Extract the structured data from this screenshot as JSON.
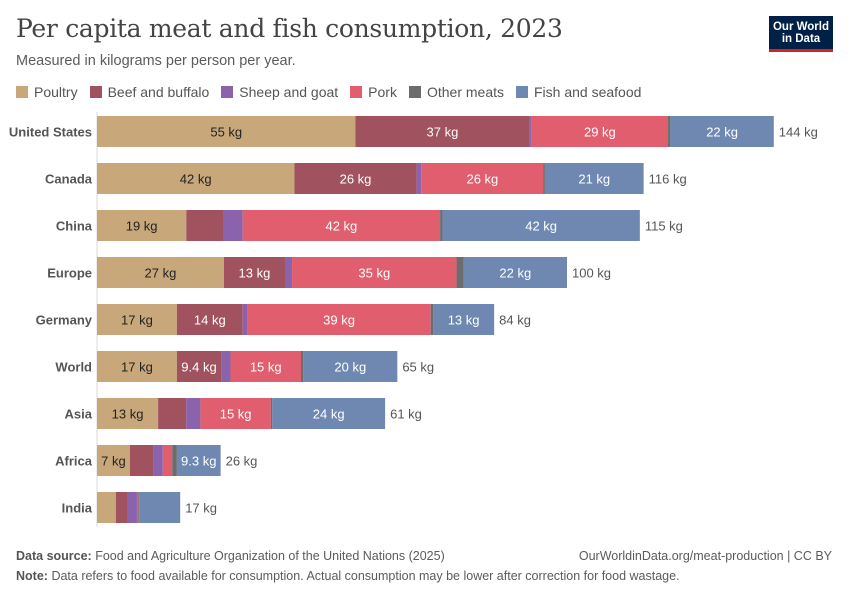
{
  "header": {
    "title": "Per capita meat and fish consumption, 2023",
    "subtitle": "Measured in kilograms per person per year.",
    "logo_line1": "Our World",
    "logo_line2": "in Data"
  },
  "footer": {
    "source_label": "Data source:",
    "source_text": "Food and Agriculture Organization of the United Nations (2025)",
    "url": "OurWorldinData.org/meat-production | CC BY",
    "note_label": "Note:",
    "note_text": "Data refers to food available for consumption. Actual consumption may be lower after correction for food wastage."
  },
  "colors": {
    "Poultry": "#c8a77a",
    "Beef and buffalo": "#a1525f",
    "Sheep and goat": "#8b62ac",
    "Pork": "#e05e6e",
    "Other meats": "#6c6c6c",
    "Fish and seafood": "#6f88b2"
  },
  "chart_data": {
    "type": "bar",
    "orientation": "horizontal",
    "stacked": true,
    "unit": "kg",
    "legend_position": "top",
    "categories": [
      "United States",
      "Canada",
      "China",
      "Europe",
      "Germany",
      "World",
      "Asia",
      "Africa",
      "India"
    ],
    "series": [
      {
        "name": "Poultry",
        "values": [
          55,
          42,
          19,
          27,
          17,
          17,
          13,
          7,
          4
        ],
        "labels": [
          "55 kg",
          "42 kg",
          "19 kg",
          "27 kg",
          "17 kg",
          "17 kg",
          "13 kg",
          "7 kg",
          ""
        ]
      },
      {
        "name": "Beef and buffalo",
        "values": [
          37,
          26,
          8,
          13,
          14,
          9.4,
          6,
          5,
          2.5
        ],
        "labels": [
          "37 kg",
          "26 kg",
          "",
          "13 kg",
          "14 kg",
          "9.4 kg",
          "",
          "",
          ""
        ]
      },
      {
        "name": "Sheep and goat",
        "values": [
          0.5,
          1,
          4,
          1.5,
          1,
          2,
          3,
          2,
          2
        ],
        "labels": [
          "",
          "",
          "",
          "",
          "",
          "",
          "",
          "",
          ""
        ]
      },
      {
        "name": "Pork",
        "values": [
          29,
          26,
          42,
          35,
          39,
          15,
          15,
          2,
          0.3
        ],
        "labels": [
          "29 kg",
          "26 kg",
          "42 kg",
          "35 kg",
          "39 kg",
          "15 kg",
          "15 kg",
          "",
          ""
        ]
      },
      {
        "name": "Other meats",
        "values": [
          0.5,
          0.3,
          0.5,
          1.5,
          0.5,
          0.5,
          0.3,
          1,
          0.2
        ],
        "labels": [
          "",
          "",
          "",
          "",
          "",
          "",
          "",
          "",
          ""
        ]
      },
      {
        "name": "Fish and seafood",
        "values": [
          22,
          21,
          42,
          22,
          13,
          20,
          24,
          9.3,
          8.7
        ],
        "labels": [
          "22 kg",
          "21 kg",
          "42 kg",
          "22 kg",
          "13 kg",
          "20 kg",
          "24 kg",
          "9.3 kg",
          ""
        ]
      }
    ],
    "totals": [
      "144 kg",
      "116 kg",
      "115 kg",
      "100 kg",
      "84 kg",
      "65 kg",
      "61 kg",
      "26 kg",
      "17 kg"
    ]
  }
}
